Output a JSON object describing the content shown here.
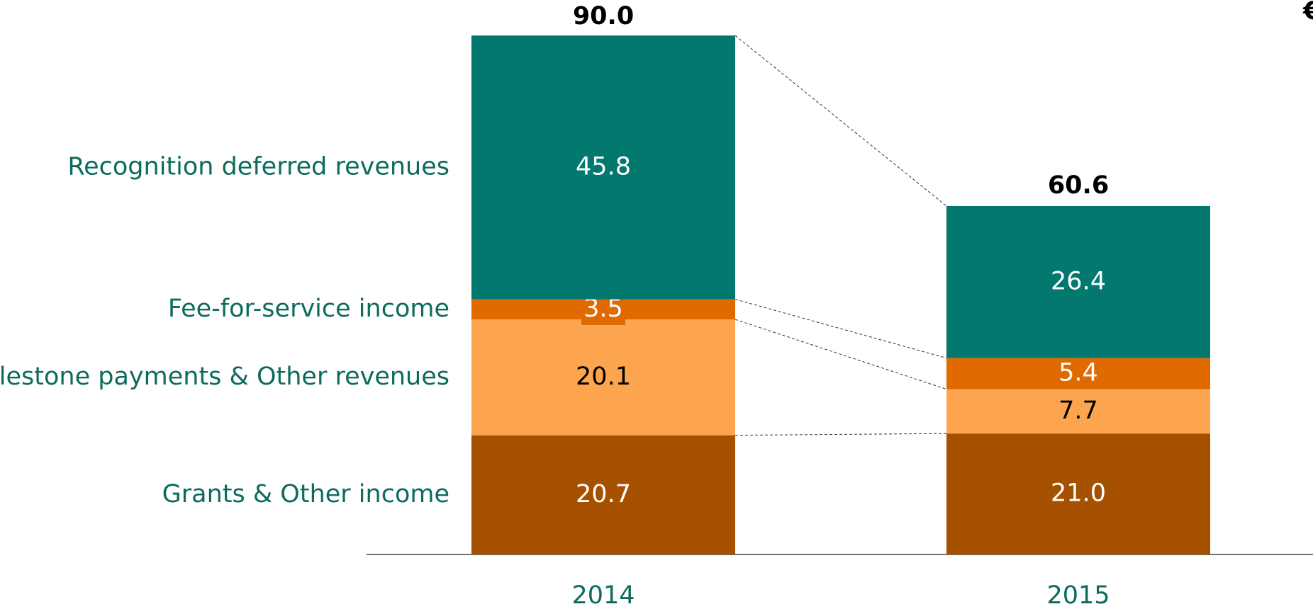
{
  "chart_data": {
    "type": "stacked-bar",
    "unit": "€",
    "categories": [
      "2014",
      "2015"
    ],
    "series": [
      {
        "name": "Grants & Other income",
        "color": "#a65100",
        "label_color": "#ffffff",
        "values": [
          20.7,
          21
        ],
        "value_labels": [
          "20.7",
          "21.0"
        ]
      },
      {
        "name": "Milestone payments & Other revenues",
        "color": "#fda44e",
        "label_color": "#000000",
        "values": [
          20.1,
          7.7
        ]
      },
      {
        "name": "Fee-for-service income",
        "color": "#e06a00",
        "label_color": "#ffffff",
        "values": [
          3.5,
          5.4
        ]
      },
      {
        "name": "Recognition deferred revenues",
        "color": "#03786e",
        "label_color": "#ffffff",
        "values": [
          45.8,
          26.4
        ]
      }
    ],
    "totals": [
      90,
      60.6
    ],
    "totals_labels": [
      "90.0",
      "60.6"
    ],
    "ylim": [
      0,
      90
    ]
  }
}
